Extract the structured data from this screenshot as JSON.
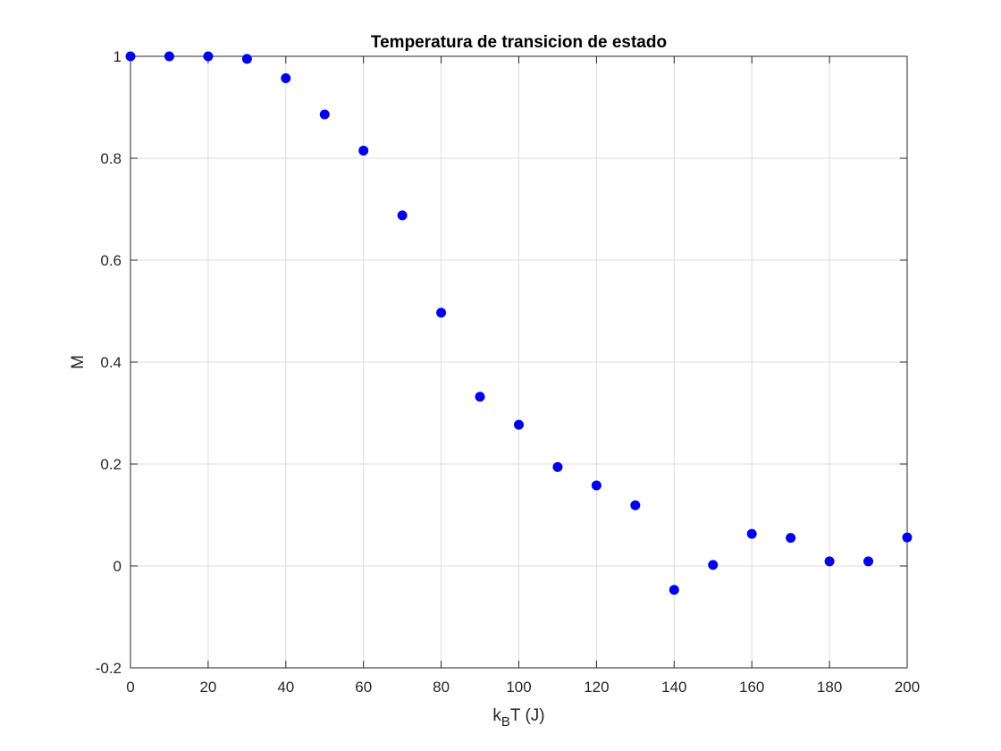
{
  "chart_data": {
    "type": "scatter",
    "title": "Temperatura de transicion de estado",
    "xlabel": {
      "main": "k",
      "subscript": "B",
      "rest": "T (J)"
    },
    "ylabel": "M",
    "xlim": [
      0,
      200
    ],
    "ylim": [
      -0.2,
      1
    ],
    "xticks": [
      0,
      20,
      40,
      60,
      80,
      100,
      120,
      140,
      160,
      180,
      200
    ],
    "yticks": [
      -0.2,
      0,
      0.2,
      0.4,
      0.6,
      0.8,
      1
    ],
    "xtick_labels": [
      "0",
      "20",
      "40",
      "60",
      "80",
      "100",
      "120",
      "140",
      "160",
      "180",
      "200"
    ],
    "ytick_labels": [
      "-0.2",
      "0",
      "0.2",
      "0.4",
      "0.6",
      "0.8",
      "1"
    ],
    "grid": true,
    "marker_color": "#0000ee",
    "series": [
      {
        "x": [
          0,
          10,
          20,
          30,
          40,
          50,
          60,
          70,
          80,
          90,
          100,
          110,
          120,
          130,
          140,
          150,
          160,
          170,
          180,
          190,
          200
        ],
        "y": [
          1.0,
          1.0,
          1.0,
          0.995,
          0.957,
          0.886,
          0.815,
          0.688,
          0.497,
          0.332,
          0.277,
          0.194,
          0.158,
          0.119,
          -0.047,
          0.002,
          0.063,
          0.055,
          0.009,
          0.009,
          0.056
        ]
      }
    ]
  }
}
